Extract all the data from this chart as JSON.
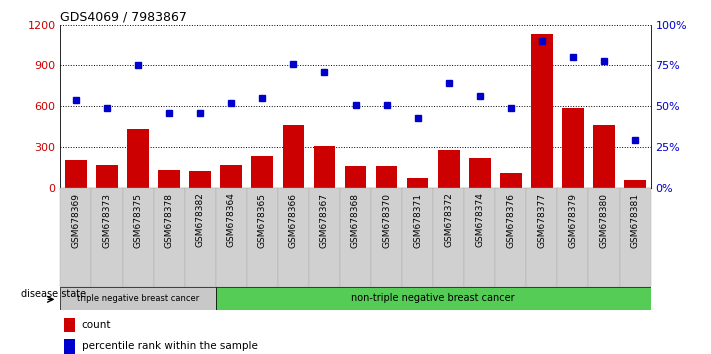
{
  "title": "GDS4069 / 7983867",
  "samples": [
    "GSM678369",
    "GSM678373",
    "GSM678375",
    "GSM678378",
    "GSM678382",
    "GSM678364",
    "GSM678365",
    "GSM678366",
    "GSM678367",
    "GSM678368",
    "GSM678370",
    "GSM678371",
    "GSM678372",
    "GSM678374",
    "GSM678376",
    "GSM678377",
    "GSM678379",
    "GSM678380",
    "GSM678381"
  ],
  "counts": [
    200,
    170,
    430,
    130,
    120,
    170,
    230,
    460,
    310,
    160,
    160,
    70,
    280,
    220,
    110,
    1130,
    590,
    460,
    55
  ],
  "percentiles": [
    54,
    49,
    75,
    46,
    46,
    52,
    55,
    76,
    71,
    51,
    51,
    43,
    64,
    56,
    49,
    90,
    80,
    78,
    29
  ],
  "group1_count": 5,
  "group2_count": 14,
  "group1_label": "triple negative breast cancer",
  "group2_label": "non-triple negative breast cancer",
  "bar_color": "#cc0000",
  "dot_color": "#0000cc",
  "ylim_left": [
    0,
    1200
  ],
  "ylim_right": [
    0,
    100
  ],
  "yticks_left": [
    0,
    300,
    600,
    900,
    1200
  ],
  "yticks_right": [
    0,
    25,
    50,
    75,
    100
  ],
  "ytick_labels_right": [
    "0%",
    "25%",
    "50%",
    "75%",
    "100%"
  ],
  "group1_bg": "#c8c8c8",
  "group2_bg": "#55cc55",
  "xtick_bg": "#d0d0d0",
  "disease_state_label": "disease state",
  "legend_count_label": "count",
  "legend_pct_label": "percentile rank within the sample"
}
